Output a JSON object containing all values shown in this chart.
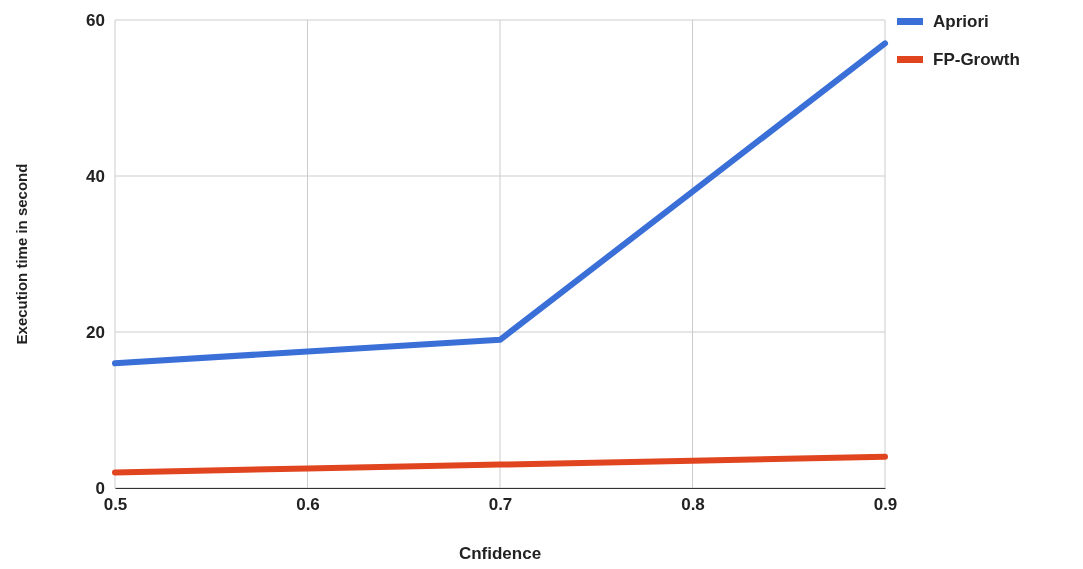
{
  "chart_data": {
    "type": "line",
    "xlabel": "Cnfidence",
    "ylabel": "Execution time in second",
    "x": [
      0.5,
      0.6,
      0.7,
      0.8,
      0.9
    ],
    "series": [
      {
        "name": "Apriori",
        "color": "#3a6fd8",
        "values": [
          16,
          17.5,
          19,
          38,
          57
        ]
      },
      {
        "name": "FP-Growth",
        "color": "#e0451f",
        "values": [
          2,
          2.5,
          3,
          3.5,
          4
        ]
      }
    ],
    "xlim": [
      0.5,
      0.9
    ],
    "xticks": [
      0.5,
      0.6,
      0.7,
      0.8,
      0.9
    ],
    "ylim": [
      0,
      60
    ],
    "yticks": [
      0,
      20,
      40,
      60
    ],
    "grid": true,
    "legend": "top right",
    "marker": "none",
    "line_style": "solid"
  }
}
